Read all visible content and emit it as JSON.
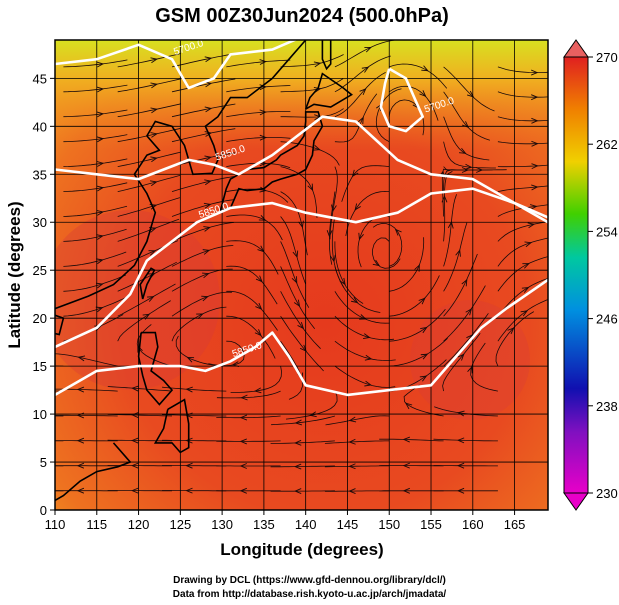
{
  "figure": {
    "title": "GSM 00Z30Jun2024 (500.0hPa)",
    "xlabel": "Longitude (degrees)",
    "ylabel": "Latitude  (degrees)",
    "credit_line1": "Drawing by DCL (https://www.gfd-dennou.org/library/dcl/)",
    "credit_line2": "Data from http://database.rish.kyoto-u.ac.jp/arch/jmadata/"
  },
  "chart_data": {
    "type": "heatmap",
    "variable_field": "temperature (color scale)",
    "x_range": [
      110,
      169
    ],
    "y_range": [
      0,
      49
    ],
    "x_ticks": [
      110,
      115,
      120,
      125,
      130,
      135,
      140,
      145,
      150,
      155,
      160,
      165
    ],
    "y_ticks": [
      0,
      5,
      10,
      15,
      20,
      25,
      30,
      35,
      40,
      45
    ],
    "colorbar": {
      "min": 230,
      "max": 270,
      "ticks": [
        230,
        238,
        246,
        254,
        262,
        270
      ],
      "colors": [
        "#e800c8",
        "#1010b0",
        "#0090e0",
        "#00c8a0",
        "#40d000",
        "#f0d000",
        "#f08000",
        "#e02020"
      ]
    },
    "contours": [
      {
        "label": "5700.0",
        "points": [
          [
            110,
            46.5
          ],
          [
            115,
            47
          ],
          [
            120,
            48.5
          ],
          [
            124,
            47
          ],
          [
            126,
            44
          ],
          [
            129,
            45
          ],
          [
            131,
            47.5
          ],
          [
            136,
            48
          ],
          [
            140,
            49.5
          ],
          [
            145,
            50
          ]
        ]
      },
      {
        "label": "5700.0",
        "points": [
          [
            150,
            46
          ],
          [
            152,
            45
          ],
          [
            153,
            43
          ],
          [
            154,
            41
          ],
          [
            152,
            39.5
          ],
          [
            150,
            40
          ],
          [
            149,
            42
          ],
          [
            149.5,
            44.5
          ],
          [
            150,
            46
          ]
        ]
      },
      {
        "label": "5850.0",
        "points": [
          [
            110,
            35.5
          ],
          [
            115,
            35
          ],
          [
            120,
            34.5
          ],
          [
            123,
            35.5
          ],
          [
            126,
            36.5
          ],
          [
            129,
            36
          ],
          [
            132,
            35
          ],
          [
            136,
            37
          ],
          [
            139,
            39
          ],
          [
            142,
            41
          ],
          [
            146,
            40.5
          ],
          [
            151,
            36.5
          ],
          [
            155,
            35
          ],
          [
            160,
            34.5
          ],
          [
            165,
            32
          ],
          [
            169,
            30.5
          ]
        ]
      },
      {
        "label": "5850.0",
        "points": [
          [
            110,
            17
          ],
          [
            115,
            19
          ],
          [
            119,
            22.5
          ],
          [
            121,
            26
          ],
          [
            124,
            28
          ],
          [
            127,
            30
          ],
          [
            131,
            31.5
          ],
          [
            136,
            32
          ],
          [
            140,
            31
          ],
          [
            146,
            30
          ],
          [
            151,
            31
          ],
          [
            155,
            33
          ],
          [
            160,
            33.5
          ],
          [
            165,
            32
          ],
          [
            169,
            30
          ]
        ]
      },
      {
        "label": "5850.0",
        "points": [
          [
            110,
            12
          ],
          [
            115,
            14.5
          ],
          [
            120,
            15
          ],
          [
            125,
            15
          ],
          [
            128,
            14.5
          ],
          [
            131,
            15.5
          ],
          [
            134,
            17
          ],
          [
            136,
            18.5
          ],
          [
            138,
            16
          ],
          [
            140,
            13
          ],
          [
            145,
            12
          ],
          [
            150,
            12.5
          ],
          [
            155,
            13
          ],
          [
            158,
            16
          ],
          [
            161,
            19
          ],
          [
            164,
            21
          ],
          [
            169,
            24
          ]
        ]
      }
    ],
    "colorbar_units_note": ""
  }
}
